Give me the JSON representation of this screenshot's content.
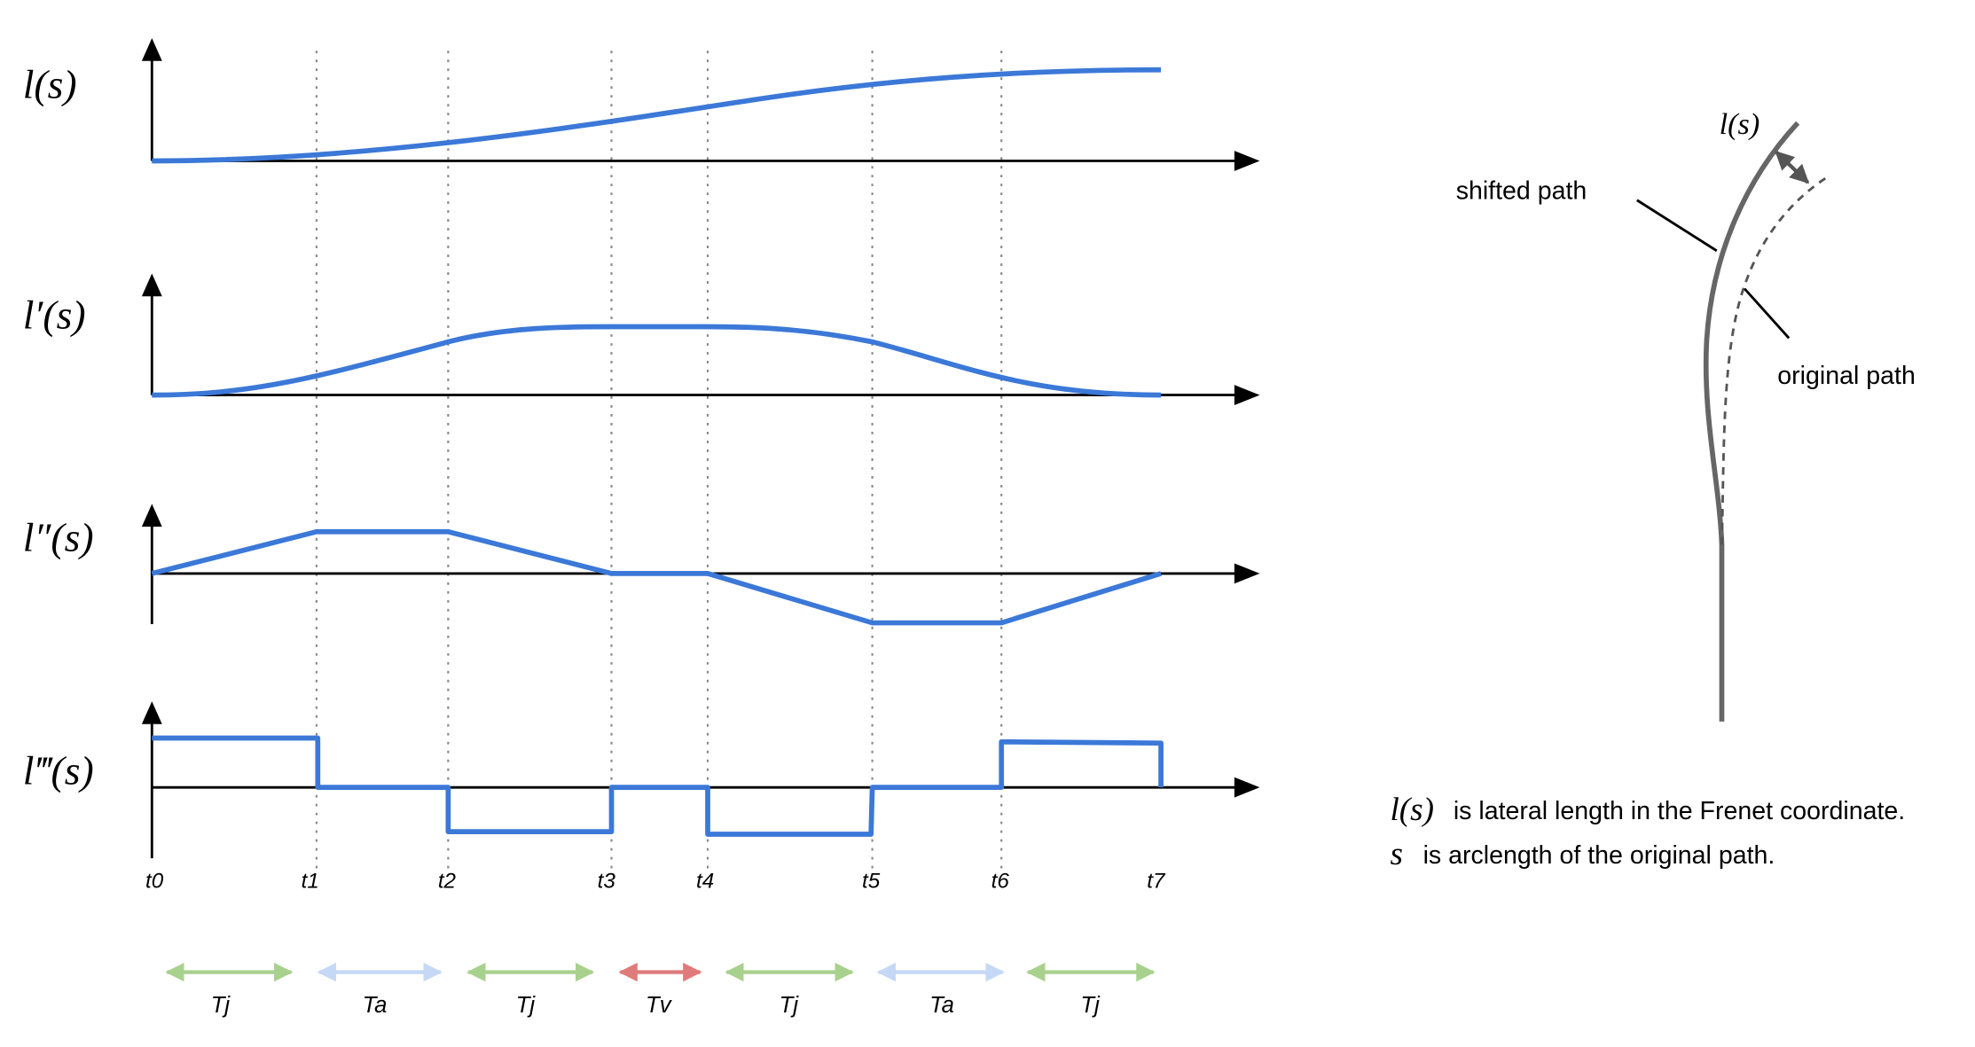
{
  "plots": [
    {
      "label": "l(s)"
    },
    {
      "label": "l′(s)"
    },
    {
      "label": "l″(s)"
    },
    {
      "label": "l‴(s)"
    }
  ],
  "time_marks": [
    "t0",
    "t1",
    "t2",
    "t3",
    "t4",
    "t5",
    "t6",
    "t7"
  ],
  "segments": [
    "Tj",
    "Ta",
    "Tj",
    "Tv",
    "Tj",
    "Ta",
    "Tj"
  ],
  "right_diagram": {
    "lateral_label": "l(s)",
    "shifted_label": "shifted path",
    "original_label": "original path"
  },
  "caption": [
    {
      "symbol": "l(s)",
      "text": "is lateral length in the Frenet coordinate."
    },
    {
      "symbol": "s",
      "text": "is arclength of the original path."
    }
  ]
}
